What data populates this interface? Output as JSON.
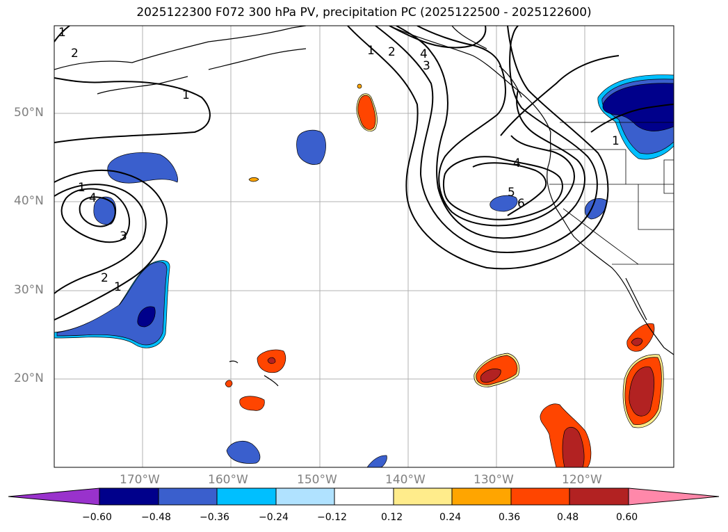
{
  "title": "2025122300 F072 300 hPa PV, precipitation PC (2025122500 - 2025122600)",
  "lat_labels": [
    "50°N",
    "40°N",
    "30°N",
    "20°N"
  ],
  "lon_labels": [
    "170°W",
    "160°W",
    "150°W",
    "140°W",
    "130°W",
    "120°W"
  ],
  "pv_contour_labels": [
    "1",
    "2",
    "1",
    "1",
    "4",
    "3",
    "2",
    "1",
    "1",
    "2",
    "4",
    "3",
    "4",
    "5",
    "6",
    "1"
  ],
  "colorbar": {
    "ticks": [
      "−0.60",
      "−0.48",
      "−0.36",
      "−0.24",
      "−0.12",
      "0.12",
      "0.24",
      "0.36",
      "0.48",
      "0.60"
    ],
    "colors": [
      "#9932cc",
      "#00008b",
      "#3a5fcd",
      "#00bfff",
      "#b0e2ff",
      "#ffffff",
      "#ffec8b",
      "#ffa500",
      "#ff4500",
      "#b22222",
      "#ff88aa"
    ]
  },
  "colors": {
    "blue_dark": "#00008b",
    "blue_mid": "#3a5fcd",
    "blue_light": "#00bfff",
    "orange_red": "#ff4500",
    "dark_red": "#b22222",
    "orange": "#ffa500",
    "yellow": "#ffec8b"
  }
}
